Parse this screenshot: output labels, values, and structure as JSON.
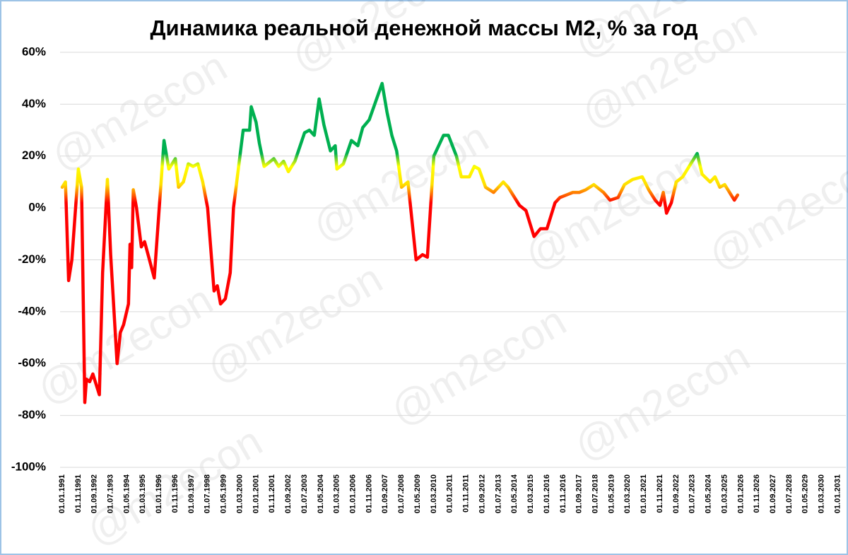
{
  "chart_data": {
    "type": "line",
    "title": "Динамика реальной денежной массы М2, % за год",
    "watermark": "@m2econ",
    "x": [
      "01.01.1991",
      "01.03.1991",
      "01.05.1991",
      "01.07.1991",
      "01.11.1991",
      "01.01.1992",
      "01.03.1992",
      "01.04.1992",
      "01.06.1992",
      "01.08.1992",
      "01.12.1992",
      "01.02.1993",
      "01.05.1993",
      "01.07.1993",
      "01.11.1993",
      "01.01.1994",
      "01.03.1994",
      "01.06.1994",
      "01.07.1994",
      "01.08.1994",
      "01.09.1994",
      "01.11.1994",
      "01.02.1995",
      "01.04.1995",
      "01.07.1995",
      "01.10.1995",
      "01.04.1996",
      "01.07.1996",
      "01.11.1996",
      "01.01.1997",
      "01.04.1997",
      "01.07.1997",
      "01.10.1997",
      "01.01.1998",
      "01.04.1998",
      "01.07.1998",
      "01.11.1998",
      "01.01.1999",
      "01.03.1999",
      "01.06.1999",
      "01.09.1999",
      "01.11.1999",
      "01.05.2000",
      "01.09.2000",
      "01.10.2000",
      "01.01.2001",
      "01.03.2001",
      "01.06.2001",
      "01.12.2001",
      "01.03.2002",
      "01.06.2002",
      "01.09.2002",
      "01.01.2003",
      "01.07.2003",
      "01.10.2003",
      "01.01.2004",
      "01.04.2004",
      "01.07.2004",
      "01.11.2004",
      "01.02.2005",
      "01.03.2005",
      "01.07.2005",
      "01.12.2005",
      "01.04.2006",
      "01.07.2006",
      "01.11.2006",
      "01.07.2007",
      "01.10.2007",
      "01.01.2008",
      "01.04.2008",
      "01.07.2008",
      "01.11.2008",
      "01.04.2009",
      "01.08.2009",
      "01.11.2009",
      "01.03.2010",
      "01.09.2010",
      "01.12.2010",
      "01.05.2011",
      "01.08.2011",
      "01.01.2012",
      "01.04.2012",
      "01.07.2012",
      "01.11.2012",
      "01.04.2013",
      "01.10.2013",
      "01.01.2014",
      "01.08.2014",
      "01.12.2014",
      "01.05.2015",
      "01.09.2015",
      "01.01.2016",
      "01.06.2016",
      "01.09.2016",
      "01.01.2017",
      "01.05.2017",
      "01.09.2017",
      "01.01.2018",
      "01.06.2018",
      "01.12.2018",
      "01.04.2019",
      "01.09.2019",
      "01.01.2020",
      "01.06.2020",
      "01.12.2020",
      "01.04.2021",
      "01.08.2021",
      "01.11.2021",
      "01.01.2022",
      "01.03.2022",
      "01.06.2022",
      "01.09.2022",
      "01.01.2023",
      "01.10.2023",
      "01.01.2024",
      "01.06.2024",
      "01.09.2024",
      "01.12.2024",
      "01.03.2025",
      "01.09.2025",
      "01.11.2025"
    ],
    "values": [
      8,
      10,
      -28,
      -20,
      15,
      8,
      -75,
      -66,
      -67,
      -64,
      -72,
      -25,
      11,
      -18,
      -60,
      -48,
      -45,
      -37,
      -14,
      -23,
      7,
      0,
      -15,
      -13,
      -20,
      -27,
      26,
      15,
      19,
      8,
      10,
      17,
      16,
      17,
      10,
      0,
      -32,
      -30,
      -37,
      -35,
      -25,
      0,
      30,
      30,
      39,
      33,
      25,
      16,
      19,
      16,
      18,
      14,
      18,
      29,
      30,
      28,
      42,
      32,
      22,
      24,
      15,
      17,
      26,
      24,
      31,
      34,
      48,
      37,
      28,
      22,
      8,
      10,
      -20,
      -18,
      -19,
      20,
      28,
      28,
      20,
      12,
      12,
      16,
      15,
      8,
      6,
      10,
      8,
      1,
      -1,
      -11,
      -8,
      -8,
      2,
      4,
      5,
      6,
      6,
      7,
      9,
      6,
      3,
      4,
      9,
      11,
      12,
      7,
      3,
      1,
      6,
      -2,
      2,
      10,
      12,
      21,
      13,
      10,
      12,
      8,
      9,
      3,
      5
    ],
    "xlim": [
      "01.01.1991",
      "01.06.2031"
    ],
    "xticks": [
      "01.01.1991",
      "01.11.1991",
      "01.09.1992",
      "01.07.1993",
      "01.05.1994",
      "01.03.1995",
      "01.01.1996",
      "01.11.1996",
      "01.09.1997",
      "01.07.1998",
      "01.05.1999",
      "01.03.2000",
      "01.01.2001",
      "01.11.2001",
      "01.09.2002",
      "01.07.2003",
      "01.05.2004",
      "01.03.2005",
      "01.01.2006",
      "01.11.2006",
      "01.09.2007",
      "01.07.2008",
      "01.05.2009",
      "01.03.2010",
      "01.01.2011",
      "01.11.2011",
      "01.09.2012",
      "01.07.2013",
      "01.05.2014",
      "01.03.2015",
      "01.01.2016",
      "01.11.2016",
      "01.09.2017",
      "01.07.2018",
      "01.05.2019",
      "01.03.2020",
      "01.01.2021",
      "01.11.2021",
      "01.09.2022",
      "01.07.2023",
      "01.05.2024",
      "01.03.2025",
      "01.01.2026",
      "01.11.2026",
      "01.09.2027",
      "01.07.2028",
      "01.05.2029",
      "01.03.2030",
      "01.01.2031"
    ],
    "ylim": [
      -100,
      60
    ],
    "yticks": [
      {
        "value": -100,
        "label": "-100%"
      },
      {
        "value": -80,
        "label": "-80%"
      },
      {
        "value": -60,
        "label": "-60%"
      },
      {
        "value": -40,
        "label": "-40%"
      },
      {
        "value": -20,
        "label": "-20%"
      },
      {
        "value": 0,
        "label": "0%"
      },
      {
        "value": 20,
        "label": "20%"
      },
      {
        "value": 40,
        "label": "40%"
      },
      {
        "value": 60,
        "label": "60%"
      }
    ],
    "grid": true,
    "color_stops": [
      {
        "value": 21,
        "color": "#00b050"
      },
      {
        "value": 16,
        "color": "#ffff00"
      },
      {
        "value": 9,
        "color": "#ffe000"
      },
      {
        "value": 2,
        "color": "#ff0000"
      }
    ]
  }
}
